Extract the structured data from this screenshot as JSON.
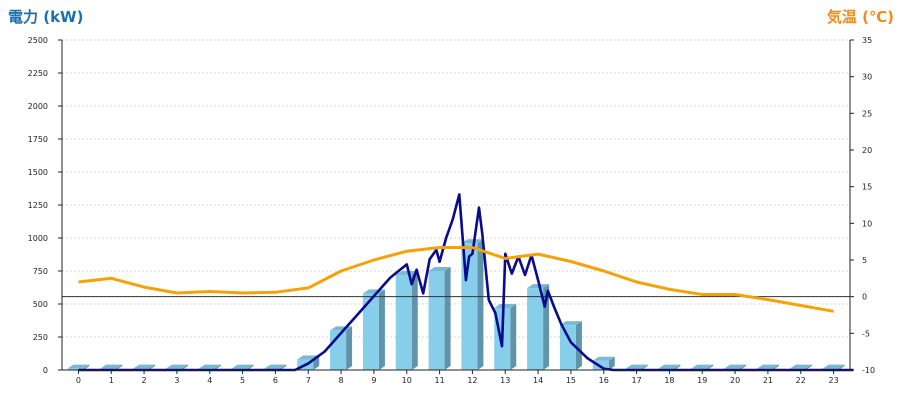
{
  "chart_data": {
    "type": "bar",
    "title": "",
    "left_axis": {
      "label": "電力 (kW)",
      "color": "#1a6fb0",
      "range": [
        0,
        2500
      ],
      "ticks": [
        "0",
        "250",
        "500",
        "750",
        "1000",
        "1250",
        "1500",
        "1750",
        "2000",
        "2250",
        "2500"
      ]
    },
    "right_axis": {
      "label": "気温 (℃)",
      "color": "#f08c1e",
      "range": [
        -10,
        35
      ],
      "ticks": [
        "-10",
        "-5",
        "0",
        "5",
        "10",
        "15",
        "20",
        "25",
        "30",
        "35"
      ]
    },
    "categories": [
      "0",
      "1",
      "2",
      "3",
      "4",
      "5",
      "6",
      "7",
      "8",
      "9",
      "10",
      "11",
      "12",
      "13",
      "14",
      "15",
      "16",
      "17",
      "18",
      "19",
      "20",
      "21",
      "22",
      "23"
    ],
    "grid": true,
    "bar_series": {
      "axis": "left",
      "color": "#87ceeb",
      "values": [
        10,
        10,
        10,
        10,
        10,
        10,
        10,
        80,
        300,
        580,
        720,
        750,
        960,
        470,
        620,
        340,
        70,
        10,
        10,
        10,
        10,
        10,
        10,
        10
      ]
    },
    "power_line": {
      "axis": "left",
      "color": "#0a0a8c",
      "x": [
        0,
        6.6,
        7,
        7.5,
        8,
        8.5,
        9,
        9.5,
        10,
        10.15,
        10.3,
        10.5,
        10.7,
        10.9,
        11,
        11.2,
        11.4,
        11.6,
        11.8,
        11.9,
        12,
        12.2,
        12.3,
        12.5,
        12.7,
        12.9,
        13,
        13.2,
        13.4,
        13.6,
        13.8,
        14,
        14.2,
        14.3,
        14.5,
        14.7,
        15,
        15.5,
        16,
        16.3,
        23.6
      ],
      "values": [
        0,
        0,
        50,
        140,
        280,
        420,
        560,
        700,
        800,
        650,
        760,
        580,
        840,
        910,
        820,
        1000,
        1140,
        1330,
        680,
        860,
        880,
        1230,
        1030,
        530,
        430,
        180,
        880,
        730,
        860,
        720,
        870,
        680,
        480,
        600,
        470,
        350,
        210,
        90,
        10,
        0,
        0
      ]
    },
    "temp_line": {
      "axis": "right",
      "color": "#f5a20a",
      "x": [
        0,
        1,
        2,
        3,
        4,
        5,
        6,
        7,
        8,
        9,
        10,
        11,
        12,
        13,
        14,
        15,
        16,
        17,
        18,
        19,
        20,
        21,
        22,
        23
      ],
      "values": [
        2,
        2.5,
        1.3,
        0.5,
        0.7,
        0.5,
        0.6,
        1.2,
        3.5,
        5,
        6.2,
        6.7,
        6.7,
        5.2,
        5.8,
        4.8,
        3.5,
        2,
        1,
        0.3,
        0.3,
        -0.4,
        -1.2,
        -2
      ]
    }
  }
}
